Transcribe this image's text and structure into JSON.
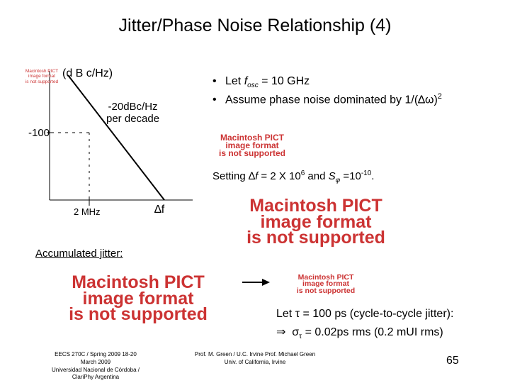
{
  "slide": {
    "title": "Jitter/Phase Noise Relationship (4)",
    "page_number": "65"
  },
  "plot": {
    "ylabel": "(d B c/Hz)",
    "slope_line1": "-20dBc/Hz",
    "slope_line2": "per decade",
    "level": "-100",
    "corner": "2 MHz",
    "xlabel": "∆f"
  },
  "images": {
    "pict_small": [
      "Macintosh PICT",
      "image format",
      "is not supported"
    ],
    "pict_large": [
      "Macintosh PICT",
      "image format",
      "is not supported"
    ]
  },
  "bullets": {
    "b1_prefix": "Let ",
    "b1_var": "f",
    "b1_sub": "osc",
    "b1_suffix": " = 10 GHz",
    "b2_text": "Assume phase noise dominated by 1/(",
    "b2_sym": "∆ω",
    "b2_close": ")",
    "b2_exp": "2"
  },
  "setting": {
    "pre": "Setting ",
    "delta": "∆",
    "f": "f",
    "mid": " = 2 X 10",
    "exp6": "6",
    "and": " and ",
    "S": "S",
    "phi": "φ",
    "eq": " =10",
    "exp10": "-10",
    "end": "."
  },
  "accumulated": "Accumulated jitter:",
  "result": {
    "line1_pre": "Let ",
    "tau": "τ",
    "line1_post": " = 100 ps (cycle-to-cycle jitter):",
    "implies": "⇒",
    "sigma": "σ",
    "tau_sub": "τ",
    "line2_post": " = 0.02ps rms (0.2 mUI rms)"
  },
  "footer": {
    "left": [
      "EECS 270C / Spring 2009 18-20",
      "March 2009",
      "Universidad Nacional de Córdoba /",
      "ClariPhy Argentina"
    ],
    "middle": [
      "Prof. M. Green / U.C. Irvine Prof. Michael Green",
      "Univ. of California, Irvine"
    ]
  }
}
